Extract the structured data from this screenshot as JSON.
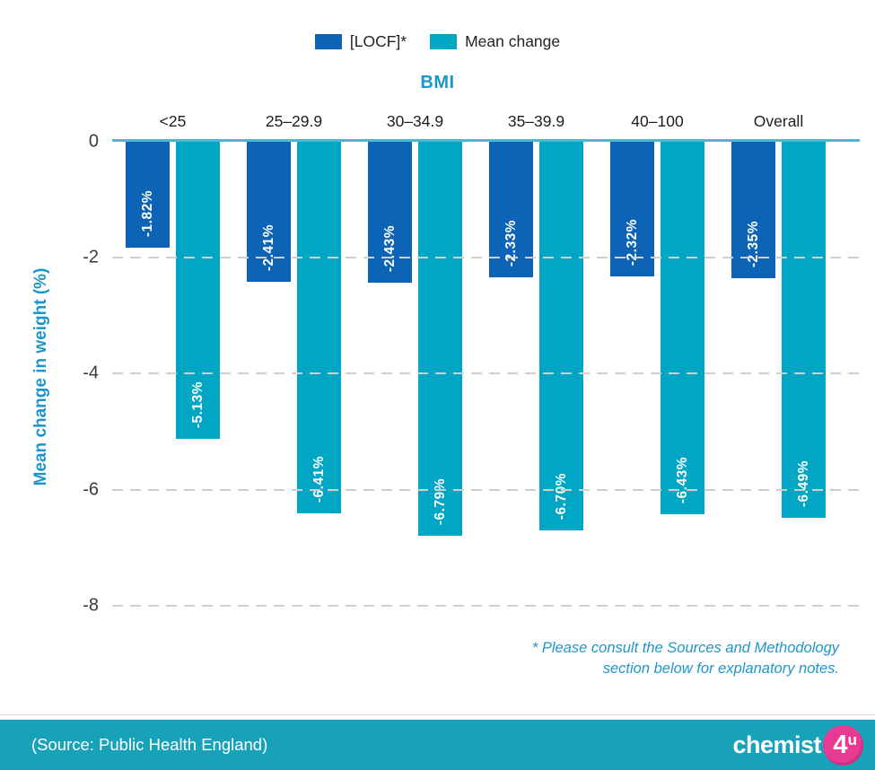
{
  "chart_data": {
    "type": "bar",
    "title": "BMI",
    "xlabel": "",
    "ylabel": "Mean change in weight (%)",
    "categories": [
      "<25",
      "25–29.9",
      "30–34.9",
      "35–39.9",
      "40–100",
      "Overall"
    ],
    "series": [
      {
        "name": "[LOCF]*",
        "color": "#0d63b5",
        "values": [
          -1.82,
          -2.41,
          -2.43,
          -2.33,
          -2.32,
          -2.35
        ],
        "labels": [
          "-1.82%",
          "-2.41%",
          "-2.43%",
          "-2.33%",
          "-2.32%",
          "-2.35%"
        ]
      },
      {
        "name": "Mean change",
        "color": "#00a6c3",
        "values": [
          -5.13,
          -6.41,
          -6.79,
          -6.7,
          -6.43,
          -6.49
        ],
        "labels": [
          "-5.13%",
          "-6.41%",
          "-6.79%",
          "-6.70%",
          "-6.43%",
          "-6.49%"
        ]
      }
    ],
    "yticks": [
      0,
      -2,
      -4,
      -6,
      -8
    ],
    "ylim": [
      0,
      -8.4
    ],
    "grid": "horizontal-dashed",
    "legend_position": "top-center"
  },
  "legend": {
    "items": [
      {
        "label": "[LOCF]*",
        "color": "#0d63b5"
      },
      {
        "label": "Mean change",
        "color": "#00a6c3"
      }
    ]
  },
  "titles": {
    "bmi": "BMI",
    "y_axis": "Mean change in weight (%)"
  },
  "footnote": {
    "line1": "* Please consult the Sources and Methodology",
    "line2": "section below for explanatory notes."
  },
  "footer": {
    "source": "(Source: Public Health England)",
    "background": "#18a2b9",
    "logo": {
      "text": "chemist",
      "badge_number": "4",
      "badge_letter": "u",
      "badge_color": "#e83a92"
    }
  },
  "colors": {
    "locf_bar": "#0d63b5",
    "mean_change_bar": "#00a6c3",
    "zero_axis_line": "#4db6d0",
    "gridline": "#cfcfcf",
    "accent_teal_text": "#1b96ca",
    "tick_text": "#3b3b3b",
    "category_text": "#1d1d1d"
  }
}
